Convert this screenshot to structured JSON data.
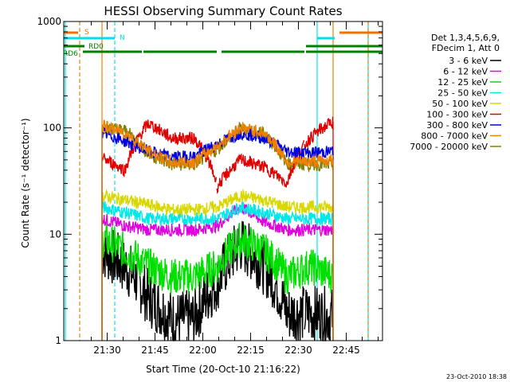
{
  "chart_data": {
    "type": "line",
    "title": "HESSI Observing Summary Count Rates",
    "xlabel": "Start Time (20-Oct-10 21:16:22)",
    "ylabel": "Count Rate (s⁻¹ detector⁻¹)",
    "x_ticks": [
      "21:30",
      "21:45",
      "22:00",
      "22:15",
      "22:30",
      "22:45"
    ],
    "x_tick_minutes": [
      13.63,
      28.63,
      43.63,
      58.63,
      73.63,
      88.63
    ],
    "xlim_minutes": [
      0,
      100
    ],
    "y_scale": "log",
    "y_ticks": [
      "1",
      "10",
      "100",
      "1000"
    ],
    "ylim": [
      1,
      1000
    ],
    "grid": false,
    "legend": {
      "placement": "right",
      "header": [
        "Det 1,3,4,5,6,9,",
        "FDecim 1, Att 0"
      ],
      "entries": [
        {
          "label": "3 - 6 keV",
          "color": "#000000"
        },
        {
          "label": "6 - 12 keV",
          "color": "#e000e0"
        },
        {
          "label": "12 - 25 keV",
          "color": "#00e000"
        },
        {
          "label": "25 - 50 keV",
          "color": "#00e8e8"
        },
        {
          "label": "50 - 100 keV",
          "color": "#d8d800"
        },
        {
          "label": "100 - 300 keV",
          "color": "#e00000"
        },
        {
          "label": "300 - 800 keV",
          "color": "#0000e0"
        },
        {
          "label": "800 - 7000 keV",
          "color": "#f08000"
        },
        {
          "label": "7000 - 20000 keV",
          "color": "#808000"
        }
      ]
    },
    "flags": [
      {
        "label": "S",
        "color": "#f07000"
      },
      {
        "label": "N",
        "color": "#00e0f0"
      },
      {
        "label": "RD0",
        "color": "#008000"
      },
      {
        "label": "RD6",
        "color": "#008000"
      }
    ],
    "intervals": [
      {
        "name": "S",
        "x_minutes": [
          [
            0,
            4.5
          ],
          [
            86.5,
            100
          ]
        ]
      },
      {
        "name": "N",
        "x_minutes": [
          [
            0,
            16
          ],
          [
            79.5,
            85
          ]
        ]
      },
      {
        "name": "RD0",
        "x_minutes": [
          [
            6,
            24.5
          ],
          [
            25,
            48
          ],
          [
            49.5,
            75.5
          ],
          [
            76,
            100
          ]
        ]
      },
      {
        "name": "RD6",
        "x_minutes": [
          [
            0,
            6.5
          ],
          [
            76,
            100
          ]
        ]
      }
    ],
    "markers": [
      {
        "color": "#00e8e8",
        "x_minutes": [
          0.5,
          79.5,
          95.5
        ]
      },
      {
        "color": "#f08000",
        "x_minutes": [
          5,
          12,
          84.5,
          95.5
        ]
      }
    ],
    "data_window_minutes": [
      12,
      84.5
    ],
    "segments_minutes": [
      [
        12,
        25
      ],
      [
        25,
        48
      ],
      [
        48,
        75.5
      ],
      [
        75.5,
        84.5
      ]
    ],
    "series": [
      {
        "name": "800 - 7000 keV",
        "color": "#f08000",
        "values": [
          105,
          90,
          60,
          47,
          48,
          67,
          100,
          90,
          48,
          48,
          50
        ]
      },
      {
        "name": "300 - 800 keV",
        "color": "#0000e0",
        "values": [
          90,
          75,
          60,
          53,
          54,
          70,
          90,
          80,
          60,
          58,
          60
        ]
      },
      {
        "name": "100 - 300 keV",
        "color": "#e00000",
        "values": [
          52,
          40,
          110,
          80,
          80,
          28,
          50,
          43,
          30,
          80,
          115
        ]
      },
      {
        "name": "7000 - 20000 keV",
        "color": "#808000",
        "values": [
          100,
          95,
          56,
          45,
          45,
          62,
          100,
          88,
          46,
          45,
          45
        ]
      },
      {
        "name": "50 - 100 keV",
        "color": "#d8d800",
        "values": [
          23,
          21,
          19,
          17,
          17,
          18,
          23,
          21,
          18,
          18,
          18
        ]
      },
      {
        "name": "25 - 50 keV",
        "color": "#00e8e8",
        "values": [
          18,
          16,
          14,
          14,
          14,
          14,
          18,
          16,
          14,
          14,
          14
        ]
      },
      {
        "name": "6 - 12 keV",
        "color": "#e000e0",
        "values": [
          14,
          12,
          11,
          11,
          11,
          12,
          18,
          13,
          11,
          11,
          11
        ]
      },
      {
        "name": "12 - 25 keV",
        "color": "#00e000",
        "values": [
          9,
          7,
          5,
          4,
          4,
          5,
          9,
          7,
          4,
          5,
          4
        ]
      },
      {
        "name": "3 - 6 keV",
        "color": "#000000",
        "values": [
          7,
          5,
          2.5,
          1.6,
          1.6,
          3.5,
          8,
          5,
          1.8,
          1.8,
          1.7
        ]
      }
    ]
  },
  "footer": {
    "timestamp": "23-Oct-2010 18:38"
  }
}
